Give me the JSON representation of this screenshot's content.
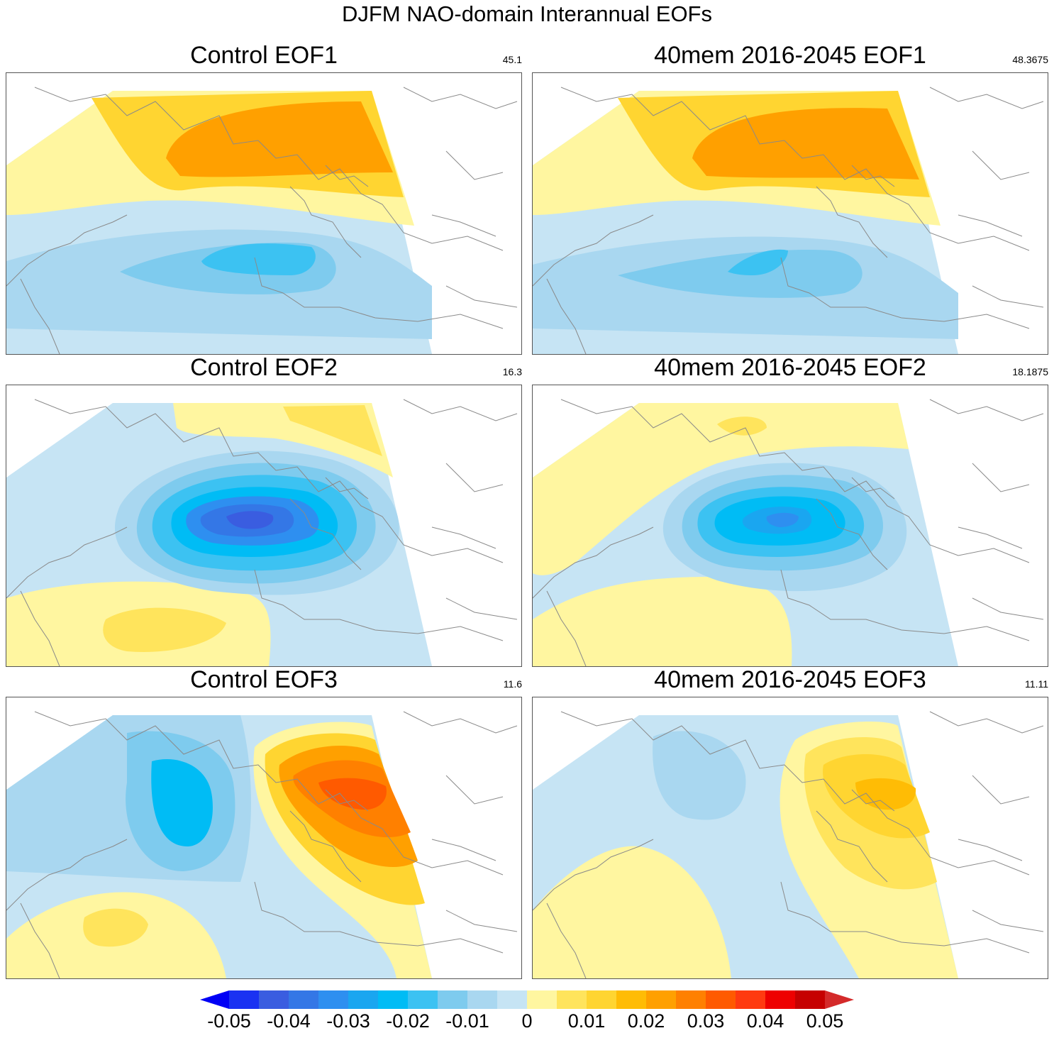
{
  "figure": {
    "title": "DJFM NAO-domain Interannual EOFs"
  },
  "panels": [
    {
      "title": "Control EOF1",
      "variance": "45.1"
    },
    {
      "title": "40mem 2016-2045 EOF1",
      "variance": "48.3675"
    },
    {
      "title": "Control EOF2",
      "variance": "16.3"
    },
    {
      "title": "40mem 2016-2045 EOF2",
      "variance": "18.1875"
    },
    {
      "title": "Control EOF3",
      "variance": "11.6"
    },
    {
      "title": "40mem 2016-2045 EOF3",
      "variance": "11.11"
    }
  ],
  "colorbar": {
    "labels": [
      "-0.05",
      "-0.04",
      "-0.03",
      "-0.02",
      "-0.01",
      "0",
      "0.01",
      "0.02",
      "0.03",
      "0.04",
      "0.05"
    ],
    "colors": [
      "#0000f5",
      "#1a32f2",
      "#3a5de0",
      "#3477e6",
      "#2e8ff0",
      "#1aa6f0",
      "#00bcf5",
      "#3cc2f2",
      "#7ecbee",
      "#a9d7f0",
      "#c6e4f4",
      "#fff6a0",
      "#ffe45c",
      "#ffd531",
      "#ffbc05",
      "#ffa000",
      "#ff8000",
      "#ff5a00",
      "#ff3a10",
      "#ee0000",
      "#c60000",
      "#d42a2a"
    ]
  }
}
